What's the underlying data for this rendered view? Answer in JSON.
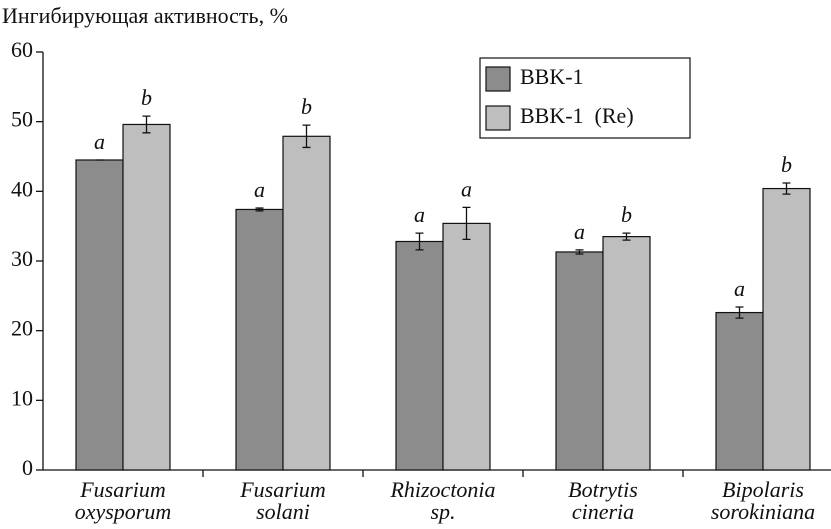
{
  "chart_data": {
    "type": "bar",
    "y_axis_label": "Ингибирующая активность, %",
    "categories": [
      [
        "Fusarium",
        "oxysporum"
      ],
      [
        "Fusarium",
        "solani"
      ],
      [
        "Rhizoctonia",
        "sp."
      ],
      [
        "Botrytis",
        "cineria"
      ],
      [
        "Bipolaris",
        "sorokiniana"
      ]
    ],
    "series": [
      {
        "name": "BBK-1",
        "color": "#8c8c8c",
        "values": [
          44.5,
          37.4,
          32.8,
          31.3,
          22.6
        ],
        "errors": [
          0,
          0.2,
          1.2,
          0.3,
          0.8
        ],
        "significance": [
          "a",
          "a",
          "a",
          "a",
          "a"
        ]
      },
      {
        "name": "BBK-1  (Re)",
        "color": "#bebebe",
        "values": [
          49.6,
          47.9,
          35.4,
          33.5,
          40.4
        ],
        "errors": [
          1.2,
          1.6,
          2.3,
          0.5,
          0.8
        ],
        "significance": [
          "b",
          "b",
          "a",
          "b",
          "b"
        ]
      }
    ],
    "ylim": [
      0,
      60
    ],
    "yticks": [
      0,
      10,
      20,
      30,
      40,
      50,
      60
    ],
    "legend": "upper-right"
  }
}
